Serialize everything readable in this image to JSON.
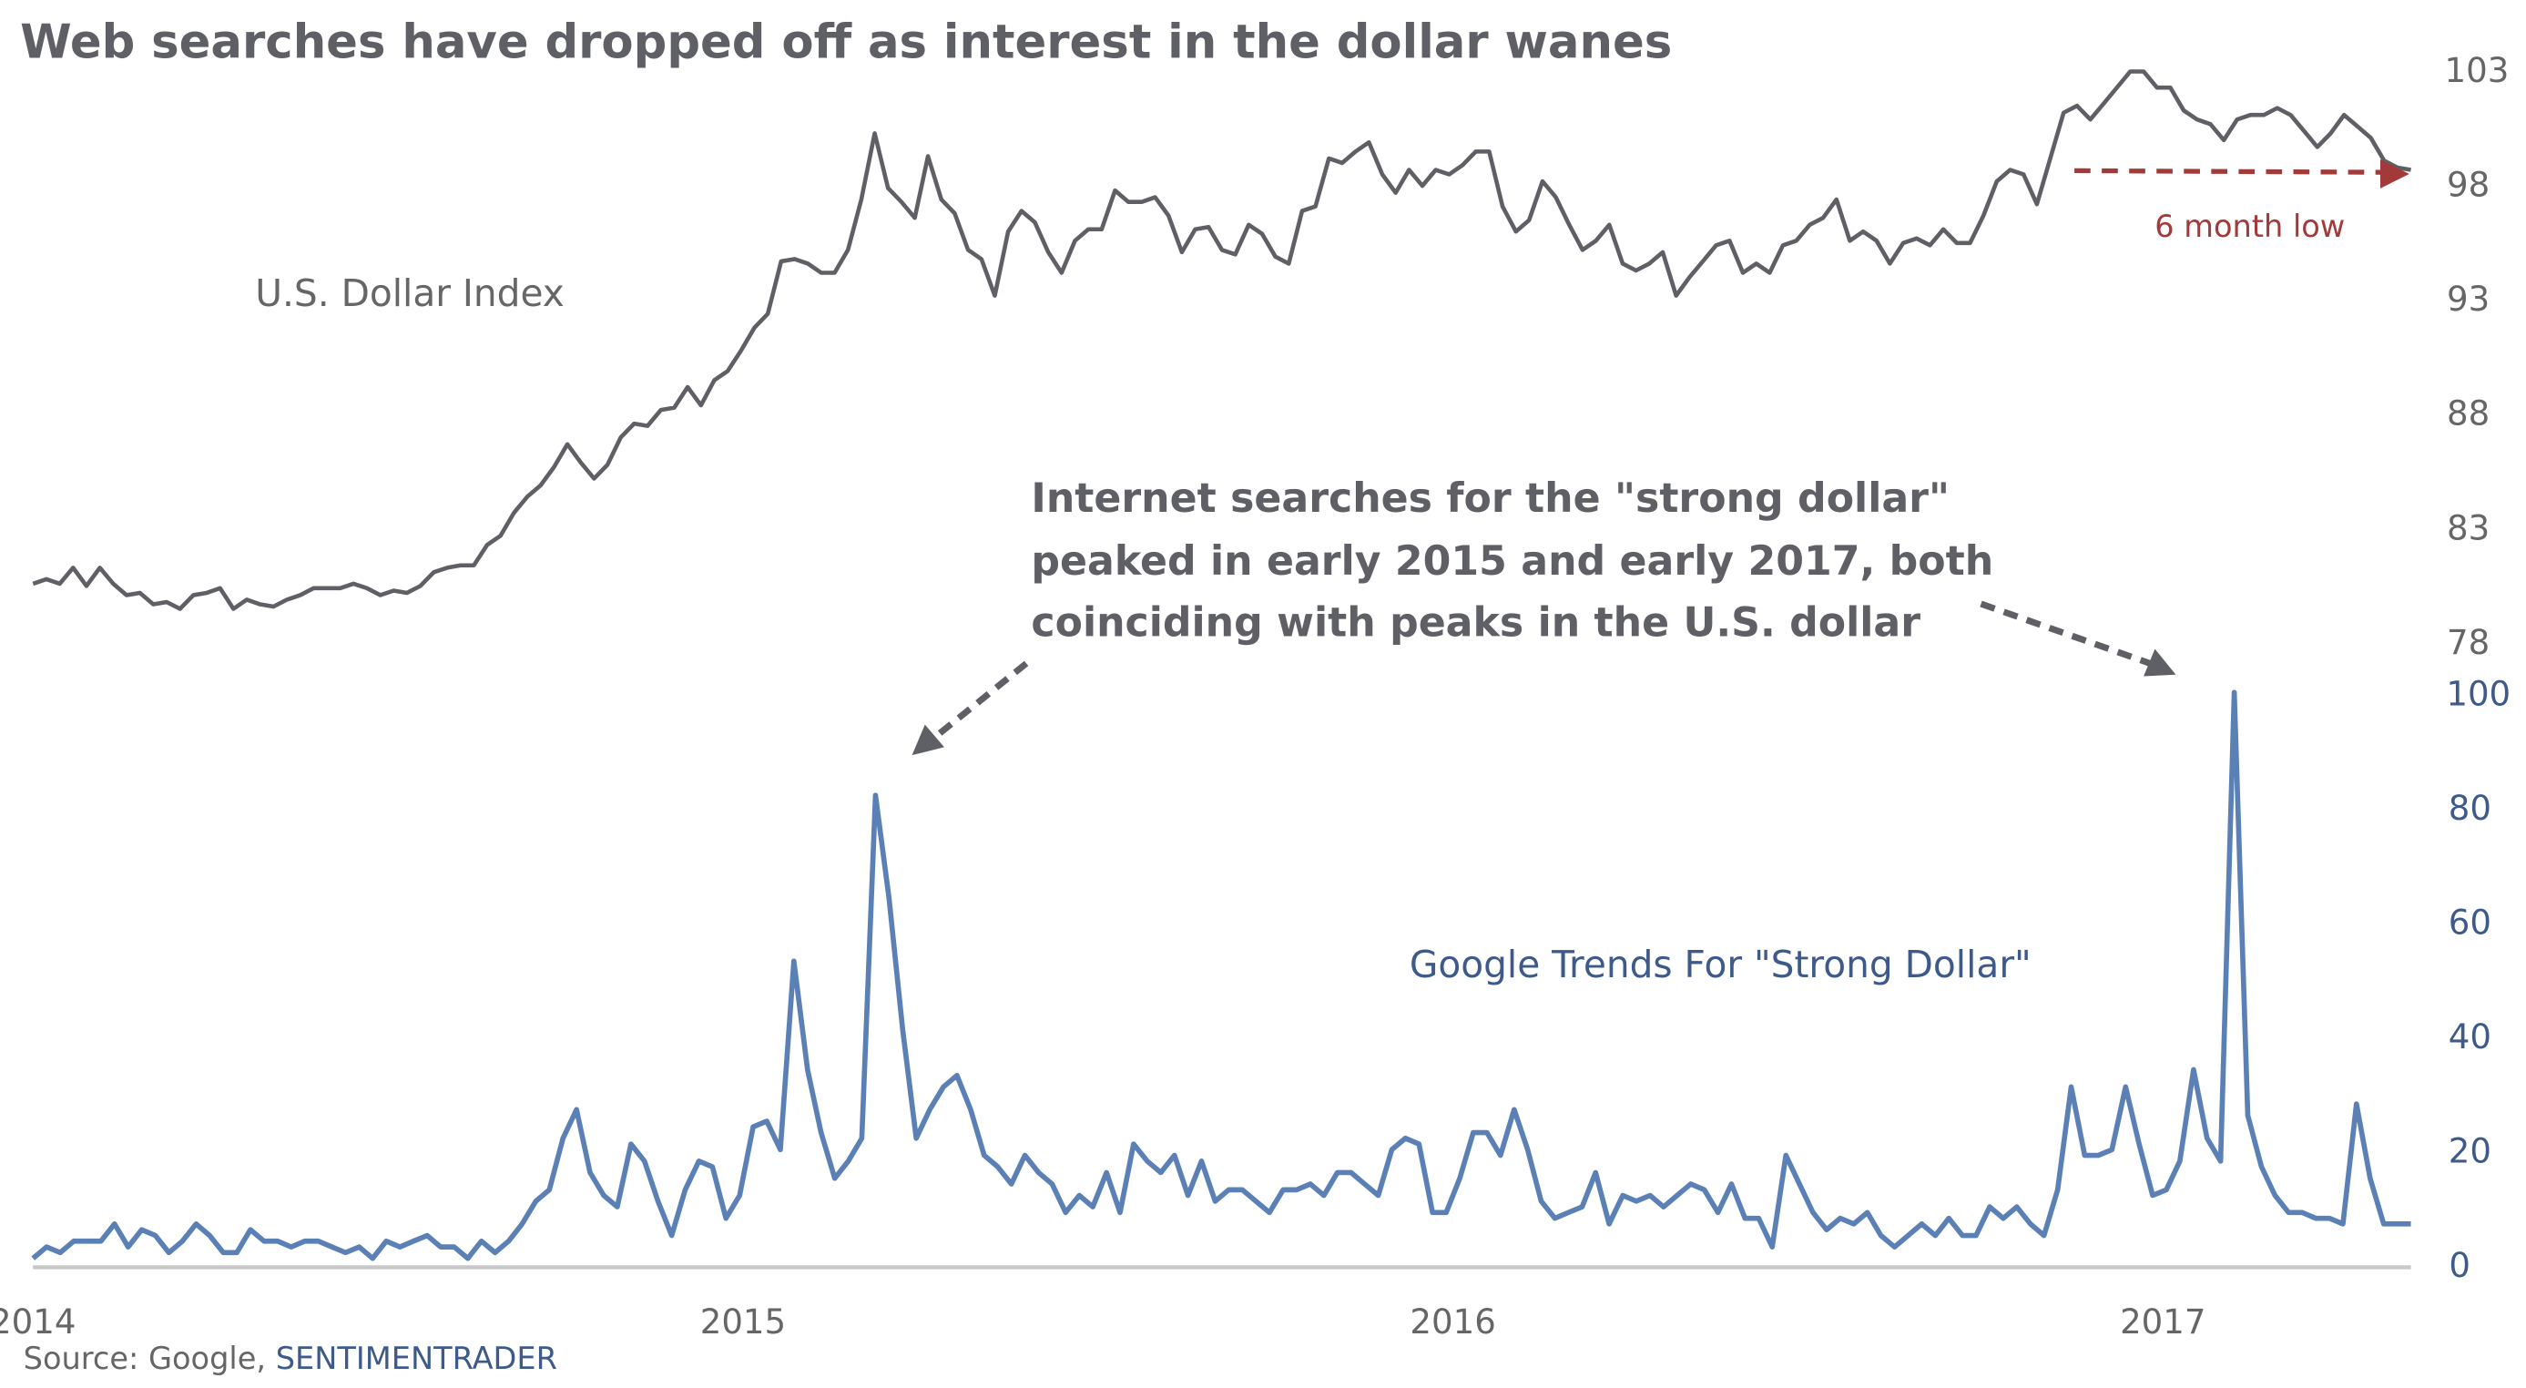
{
  "chart_data": {
    "type": "line",
    "title": "Web searches have dropped off as interest in the dollar wanes",
    "source_prefix": "Source: Google, ",
    "source_brand": "SENTIMENTRADER",
    "x_ticks": [
      "2014",
      "2015",
      "2016",
      "2017"
    ],
    "x_range": [
      2014.0,
      2017.35
    ],
    "annotation_lines": [
      "Internet searches for the \"strong dollar\"",
      "peaked in early 2015 and early 2017, both",
      "coinciding with peaks in the U.S. dollar"
    ],
    "low_label": "6 month low",
    "colors": {
      "dollar": "#5f5f66",
      "trends": "#5b80b5",
      "low_arrow": "#a33a3a",
      "baseline": "#c8c8c8"
    },
    "series": [
      {
        "name": "U.S. Dollar Index",
        "axis": "right-upper",
        "ylim": [
          78,
          103
        ],
        "y_ticks": [
          "103",
          "98",
          "93",
          "88",
          "83",
          "78"
        ],
        "values": [
          80.5,
          80.7,
          80.5,
          81.2,
          80.4,
          81.2,
          80.5,
          80.0,
          80.1,
          79.6,
          79.7,
          79.4,
          80.0,
          80.1,
          80.3,
          79.4,
          79.8,
          79.6,
          79.5,
          79.8,
          80.0,
          80.3,
          80.3,
          80.3,
          80.5,
          80.3,
          80.0,
          80.2,
          80.1,
          80.4,
          81.0,
          81.2,
          81.3,
          81.3,
          82.2,
          82.6,
          83.6,
          84.3,
          84.8,
          85.6,
          86.6,
          85.8,
          85.1,
          85.7,
          86.9,
          87.5,
          87.4,
          88.1,
          88.2,
          89.1,
          88.3,
          89.4,
          89.8,
          90.7,
          91.7,
          92.3,
          94.6,
          94.7,
          94.5,
          94.1,
          94.1,
          95.1,
          97.3,
          100.2,
          97.8,
          97.2,
          96.5,
          99.2,
          97.3,
          96.7,
          95.1,
          94.7,
          93.1,
          95.9,
          96.8,
          96.3,
          95.0,
          94.1,
          95.5,
          96.0,
          96.0,
          97.7,
          97.2,
          97.2,
          97.4,
          96.6,
          95.0,
          96.0,
          96.1,
          95.1,
          94.9,
          96.2,
          95.8,
          94.8,
          94.5,
          96.8,
          97.0,
          99.1,
          98.9,
          99.4,
          99.8,
          98.4,
          97.6,
          98.6,
          97.9,
          98.6,
          98.4,
          98.8,
          99.4,
          99.4,
          97.0,
          95.9,
          96.4,
          98.1,
          97.4,
          96.2,
          95.1,
          95.5,
          96.2,
          94.5,
          94.2,
          94.5,
          95.0,
          93.1,
          93.9,
          94.6,
          95.3,
          95.5,
          94.1,
          94.5,
          94.1,
          95.3,
          95.5,
          96.2,
          96.5,
          97.3,
          95.5,
          95.9,
          95.5,
          94.5,
          95.4,
          95.6,
          95.3,
          96.0,
          95.4,
          95.4,
          96.6,
          98.1,
          98.6,
          98.4,
          97.1,
          99.1,
          101.1,
          101.4,
          100.8,
          101.5,
          102.2,
          102.9,
          102.9,
          102.2,
          102.2,
          101.2,
          100.8,
          100.6,
          99.9,
          100.8,
          101.0,
          101.0,
          101.3,
          101.0,
          100.3,
          99.6,
          100.2,
          101.0,
          100.5,
          100.0,
          99.0,
          98.7,
          98.6
        ]
      },
      {
        "name": "Google Trends For \"Strong Dollar\"",
        "axis": "right-lower",
        "ylim": [
          0,
          100
        ],
        "y_ticks": [
          "100",
          "80",
          "60",
          "40",
          "20",
          "0"
        ],
        "values": [
          1,
          3,
          2,
          4,
          4,
          4,
          7,
          3,
          6,
          5,
          2,
          4,
          7,
          5,
          2,
          2,
          6,
          4,
          4,
          3,
          4,
          4,
          3,
          2,
          3,
          1,
          4,
          3,
          4,
          5,
          3,
          3,
          1,
          4,
          2,
          4,
          7,
          11,
          13,
          22,
          27,
          16,
          12,
          10,
          21,
          18,
          11,
          5,
          13,
          18,
          17,
          8,
          12,
          24,
          25,
          20,
          53,
          34,
          23,
          15,
          18,
          22,
          82,
          64,
          41,
          22,
          27,
          31,
          33,
          27,
          19,
          17,
          14,
          19,
          16,
          14,
          9,
          12,
          10,
          16,
          9,
          21,
          18,
          16,
          19,
          12,
          18,
          11,
          13,
          13,
          11,
          9,
          13,
          13,
          14,
          12,
          16,
          16,
          14,
          12,
          20,
          22,
          21,
          9,
          9,
          15,
          23,
          23,
          19,
          27,
          20,
          11,
          8,
          9,
          10,
          16,
          7,
          12,
          11,
          12,
          10,
          12,
          14,
          13,
          9,
          14,
          8,
          8,
          3,
          19,
          14,
          9,
          6,
          8,
          7,
          9,
          5,
          3,
          5,
          7,
          5,
          8,
          5,
          5,
          10,
          8,
          10,
          7,
          5,
          13,
          31,
          19,
          19,
          20,
          31,
          21,
          12,
          13,
          18,
          34,
          22,
          18,
          100,
          26,
          17,
          12,
          9,
          9,
          8,
          8,
          7,
          28,
          15,
          7,
          7,
          7
        ]
      }
    ]
  }
}
